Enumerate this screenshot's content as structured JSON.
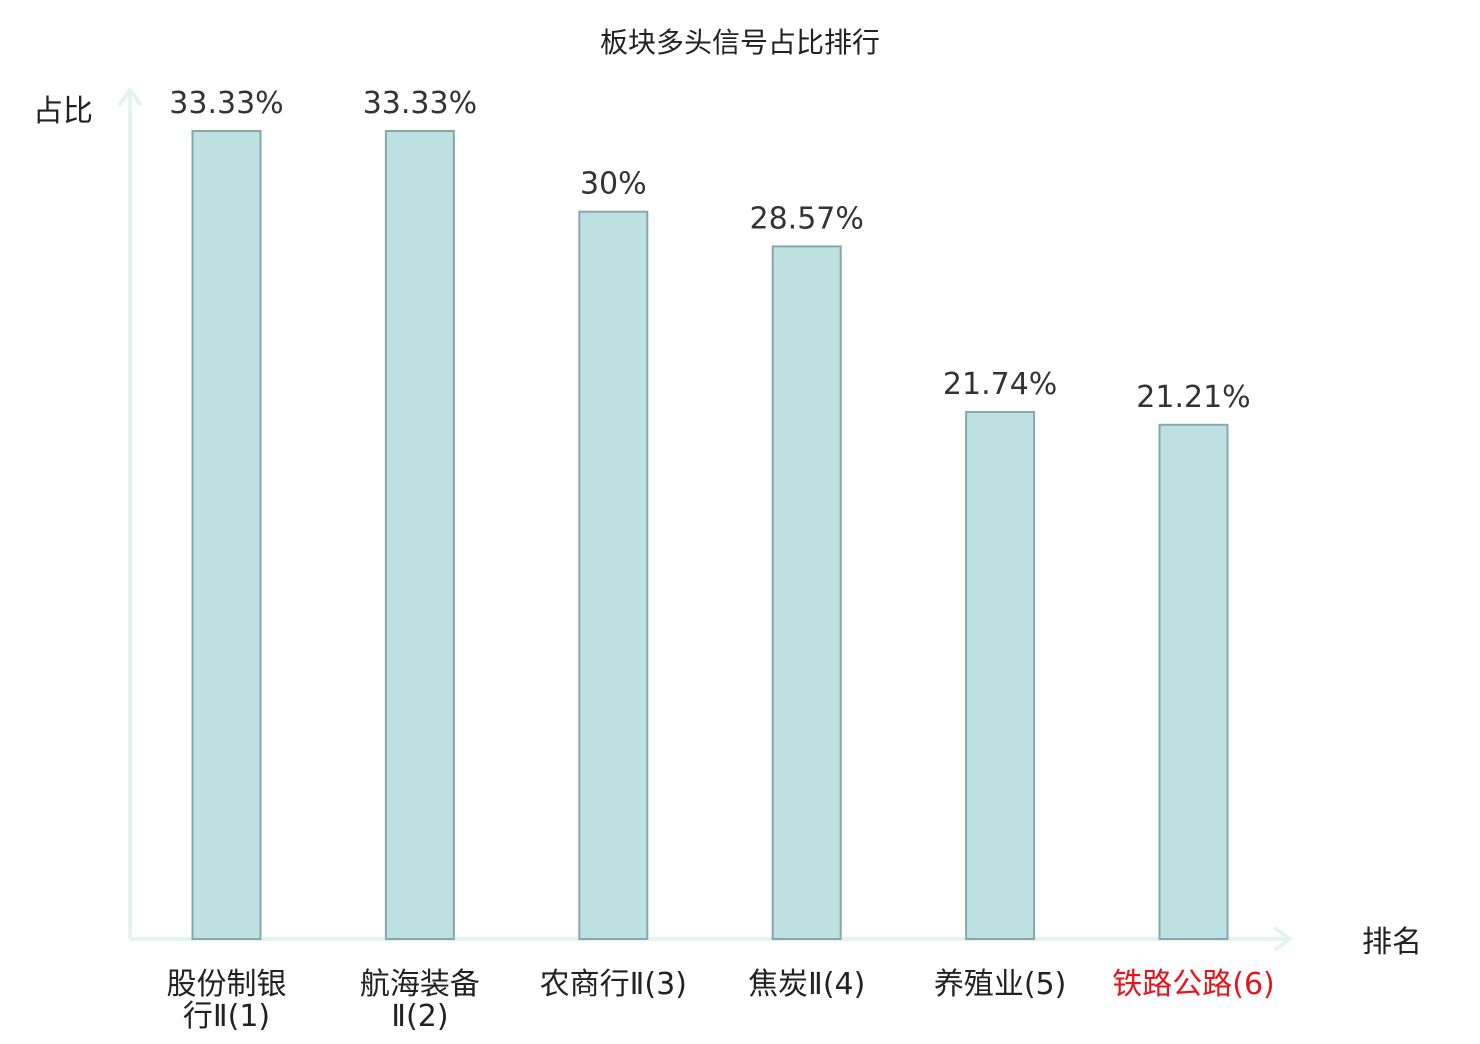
{
  "chart_data": {
    "type": "bar",
    "title": "板块多头信号占比排行",
    "ylabel": "占比",
    "xlabel": "排名",
    "ylim": [
      0,
      35
    ],
    "grid": false,
    "categories": [
      [
        "股份制银",
        "行Ⅱ(1)"
      ],
      [
        "航海装备",
        "Ⅱ(2)"
      ],
      [
        "农商行Ⅱ(3)"
      ],
      [
        "焦炭Ⅱ(4)"
      ],
      [
        "养殖业(5)"
      ],
      [
        "铁路公路(6)"
      ]
    ],
    "values": [
      33.33,
      33.33,
      30,
      28.57,
      21.74,
      21.21
    ],
    "value_labels": [
      "33.33%",
      "33.33%",
      "30%",
      "28.57%",
      "21.74%",
      "21.21%"
    ],
    "highlight_index": 5,
    "colors": {
      "bar_fill": "#bde0e2",
      "bar_stroke": "#86a8aa",
      "axis": "#e3f3f0",
      "label": "#222222",
      "value_label": "#333333",
      "highlight_label": "#e8141b"
    }
  }
}
